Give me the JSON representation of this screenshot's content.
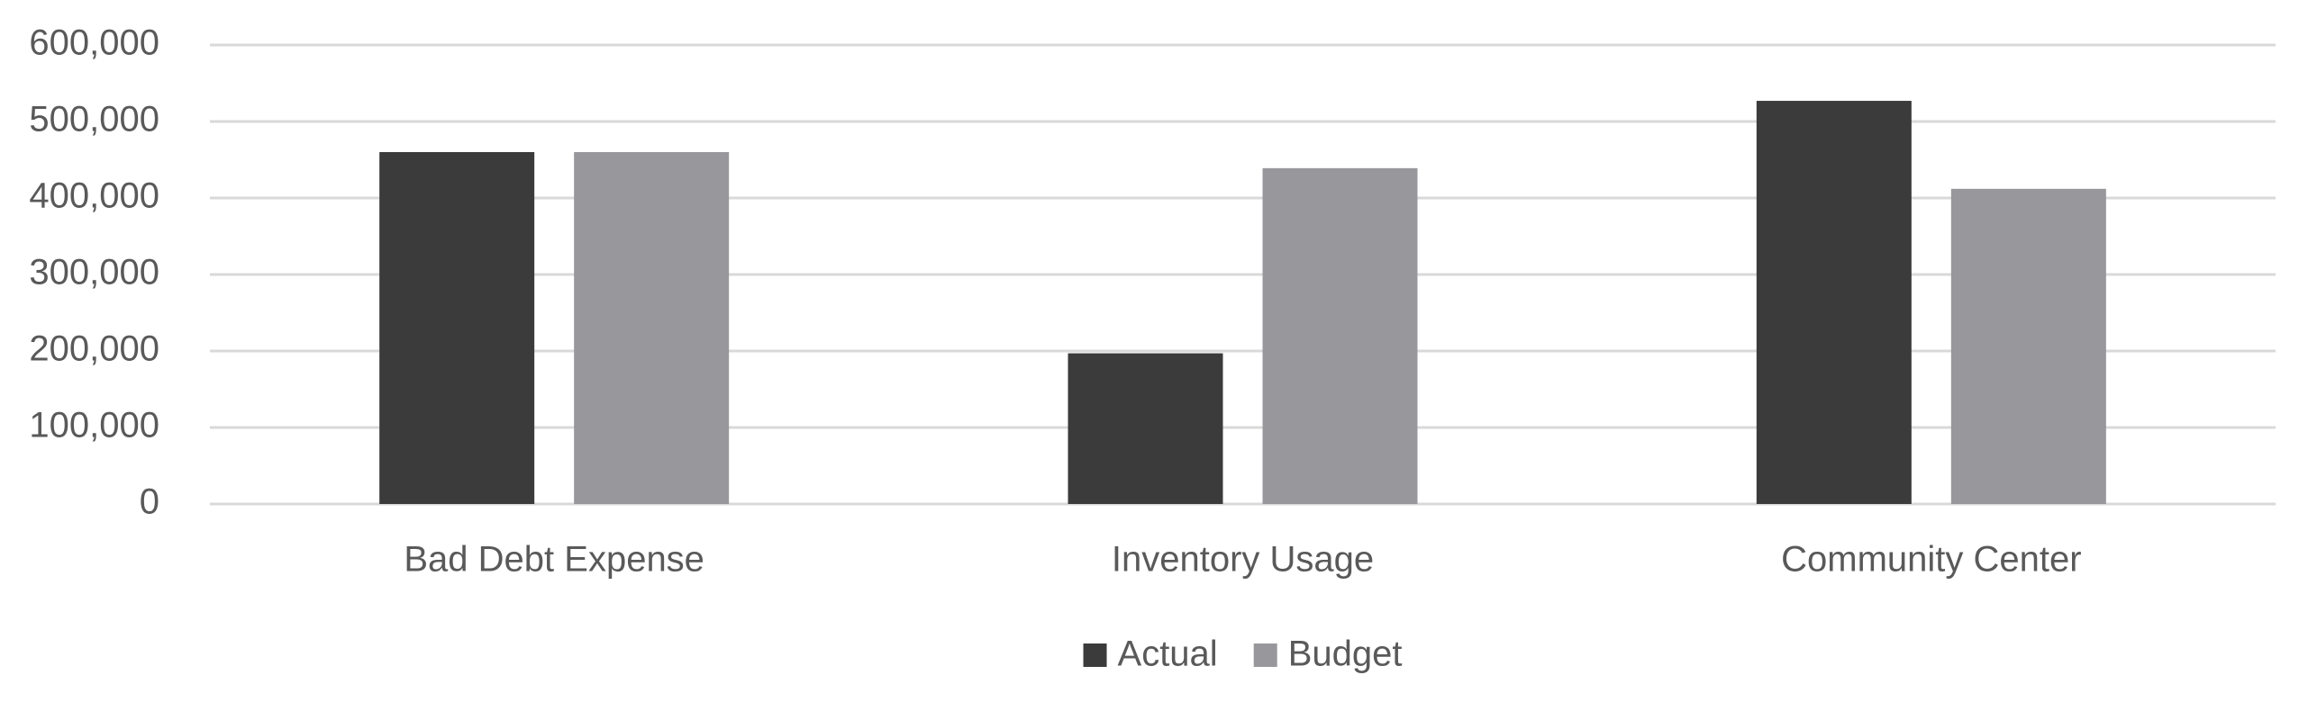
{
  "chart_data": {
    "type": "bar",
    "categories": [
      "Bad Debt Expense",
      "Inventory Usage",
      "Community Center"
    ],
    "series": [
      {
        "name": "Actual",
        "color": "#3b3b3b",
        "values": [
          460000,
          197000,
          527000
        ]
      },
      {
        "name": "Budget",
        "color": "#98989c",
        "values": [
          460000,
          439000,
          412000
        ]
      }
    ],
    "ylim": [
      0,
      600000
    ],
    "yticks": [
      0,
      {
        "value": 100000,
        "label": "100,000"
      },
      {
        "value": 200000,
        "label": "200,000"
      },
      {
        "value": 300000,
        "label": "300,000"
      },
      {
        "value": 400000,
        "label": "400,000"
      },
      {
        "value": 500000,
        "label": "500,000"
      },
      {
        "value": 600000,
        "label": "600,000"
      }
    ],
    "grid": true,
    "legend": "bottom"
  }
}
